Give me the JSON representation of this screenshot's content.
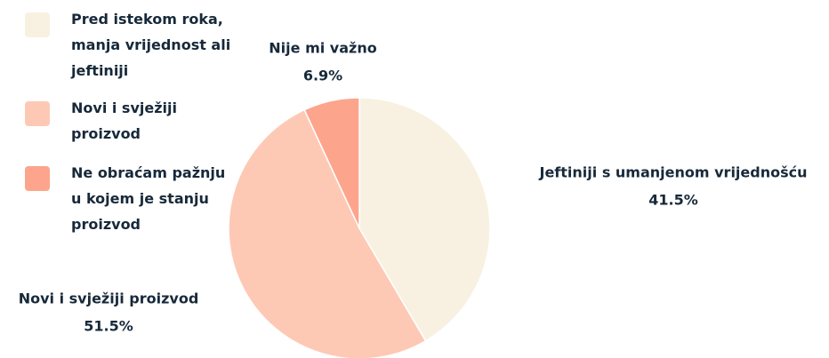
{
  "chart_data": {
    "type": "pie",
    "categories": [
      "Jeftiniji s umanjenom vrijednošću",
      "Novi i svježiji proizvod",
      "Nije mi važno"
    ],
    "values": [
      41.5,
      51.5,
      6.9
    ],
    "value_labels": [
      "41.5%",
      "51.5%",
      "6.9%"
    ],
    "colors": [
      "#f8f1e1",
      "#fdc9b5",
      "#fca58c"
    ],
    "legend": [
      "Pred istekom roka, manja vrijednost ali jeftiniji",
      "Novi i svježiji proizvod",
      "Ne obraćam pažnju u kojem je stanju proizvod"
    ]
  }
}
